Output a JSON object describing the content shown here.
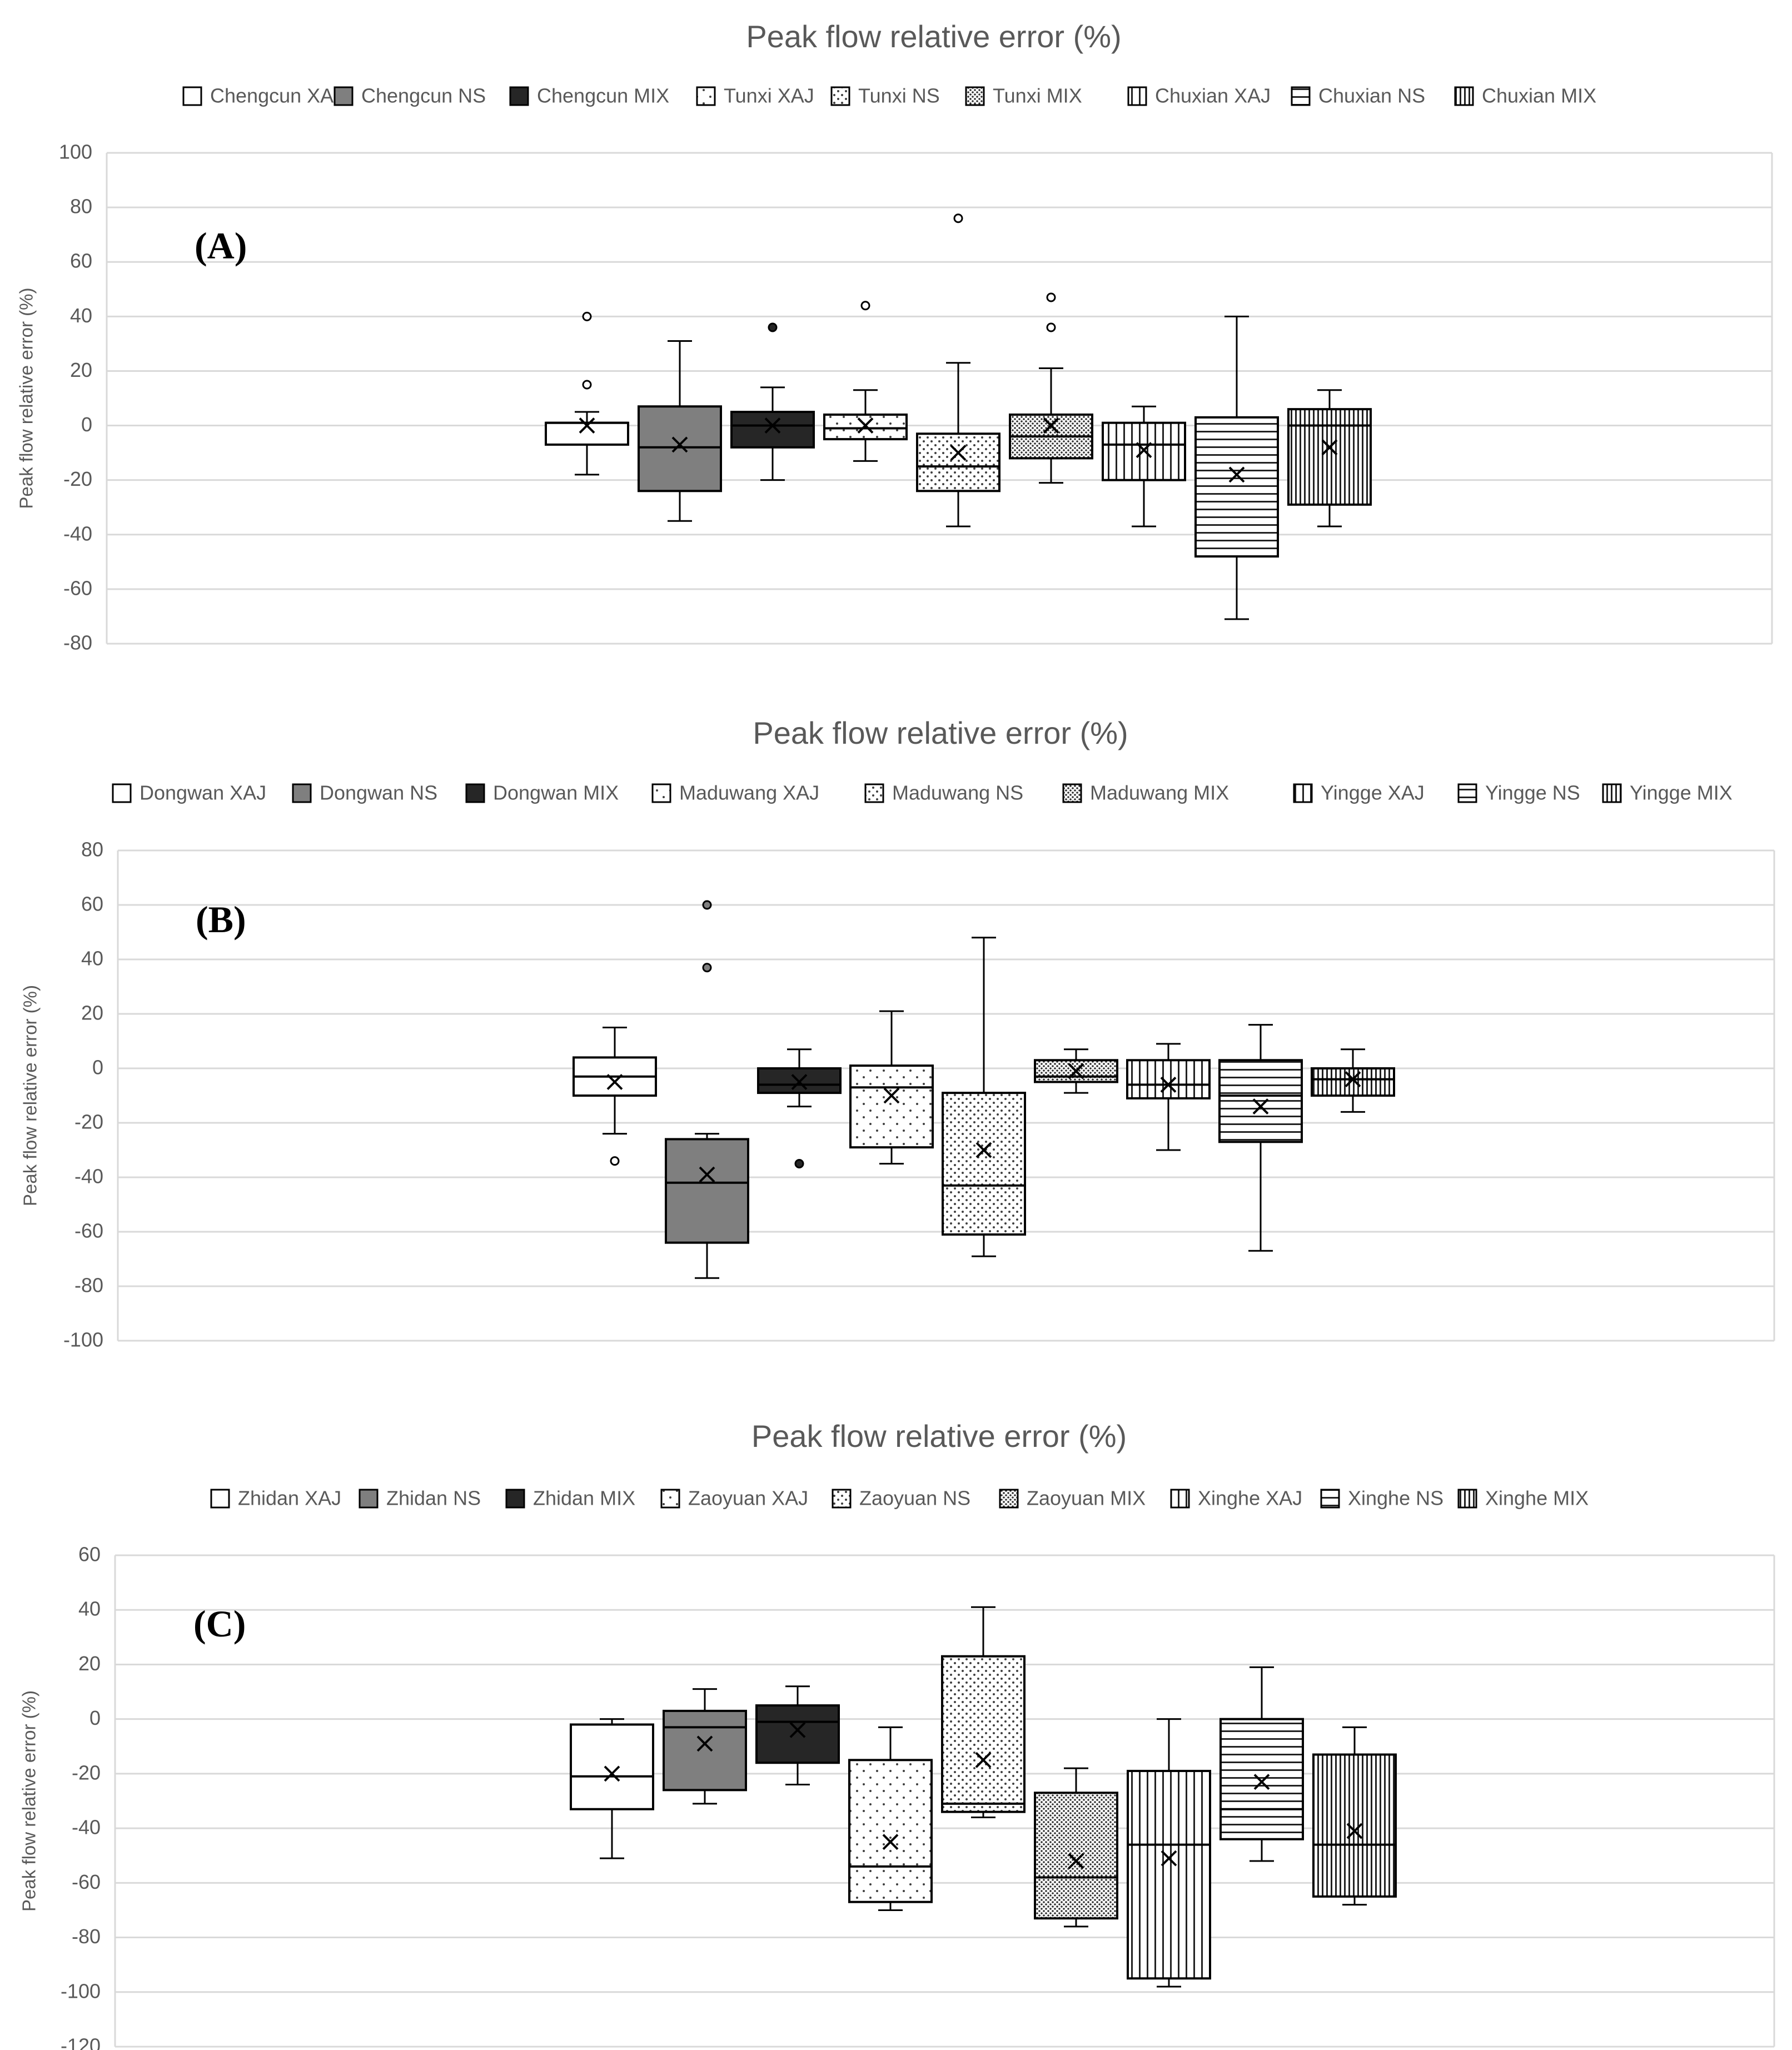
{
  "colors": {
    "white": "#ffffff",
    "gray": "#7f7f7f",
    "dark": "#262626",
    "text": "#595959",
    "grid": "#d9d9d9"
  },
  "chart_data": [
    {
      "type": "box",
      "panel": "(A)",
      "title": "Peak flow relative error (%)",
      "ylabel": "Peak flow relative error (%)",
      "ylim": [
        -80,
        100
      ],
      "yticks": [
        "100",
        "80",
        "60",
        "40",
        "20",
        "0",
        "-20",
        "-40",
        "-60",
        "-80"
      ],
      "series": [
        {
          "name": "Chengcun XAJ",
          "pattern": "white",
          "whisker_low": -18,
          "q1": -7,
          "median": 1,
          "q3": 1,
          "whisker_high": 5,
          "mean": 0,
          "outliers": [
            15,
            40
          ]
        },
        {
          "name": "Chengcun NS",
          "pattern": "gray",
          "whisker_low": -35,
          "q1": -24,
          "median": -8,
          "q3": 7,
          "whisker_high": 31,
          "mean": -7,
          "outliers": []
        },
        {
          "name": "Chengcun MIX",
          "pattern": "dark",
          "whisker_low": -20,
          "q1": -8,
          "median": 0,
          "q3": 5,
          "whisker_high": 14,
          "mean": 0,
          "outliers": [
            36
          ]
        },
        {
          "name": "Tunxi XAJ",
          "pattern": "sparse",
          "whisker_low": -13,
          "q1": -5,
          "median": -1,
          "q3": 4,
          "whisker_high": 13,
          "mean": 0,
          "outliers": [
            44
          ]
        },
        {
          "name": "Tunxi NS",
          "pattern": "dots",
          "whisker_low": -37,
          "q1": -24,
          "median": -15,
          "q3": -3,
          "whisker_high": 23,
          "mean": -10,
          "outliers": [
            76
          ]
        },
        {
          "name": "Tunxi MIX",
          "pattern": "dense",
          "whisker_low": -21,
          "q1": -12,
          "median": -4,
          "q3": 4,
          "whisker_high": 21,
          "mean": 0,
          "outliers": [
            36,
            47
          ]
        },
        {
          "name": "Chuxian XAJ",
          "pattern": "vlines",
          "whisker_low": -37,
          "q1": -20,
          "median": -7,
          "q3": 1,
          "whisker_high": 7,
          "mean": -9,
          "outliers": []
        },
        {
          "name": "Chuxian NS",
          "pattern": "hlines",
          "whisker_low": -71,
          "q1": -48,
          "median": -48,
          "q3": 3,
          "whisker_high": 40,
          "mean": -18,
          "outliers": []
        },
        {
          "name": "Chuxian MIX",
          "pattern": "vdense",
          "whisker_low": -37,
          "q1": -29,
          "median": 0,
          "q3": 6,
          "whisker_high": 13,
          "mean": -8,
          "outliers": []
        }
      ]
    },
    {
      "type": "box",
      "panel": "(B)",
      "title": "Peak flow relative error (%)",
      "ylabel": "Peak flow relative error (%)",
      "ylim": [
        -100,
        80
      ],
      "yticks": [
        "80",
        "60",
        "40",
        "20",
        "0",
        "-20",
        "-40",
        "-60",
        "-80",
        "-100"
      ],
      "series": [
        {
          "name": "Dongwan XAJ",
          "pattern": "white",
          "whisker_low": -24,
          "q1": -10,
          "median": -3,
          "q3": 4,
          "whisker_high": 15,
          "mean": -5,
          "outliers": [
            -34
          ]
        },
        {
          "name": "Dongwan NS",
          "pattern": "gray",
          "whisker_low": -77,
          "q1": -64,
          "median": -42,
          "q3": -26,
          "whisker_high": -24,
          "mean": -39,
          "outliers": [
            37,
            60
          ]
        },
        {
          "name": "Dongwan MIX",
          "pattern": "dark",
          "whisker_low": -14,
          "q1": -9,
          "median": -6,
          "q3": 0,
          "whisker_high": 7,
          "mean": -5,
          "outliers": [
            -35
          ]
        },
        {
          "name": "Maduwang XAJ",
          "pattern": "sparse",
          "whisker_low": -35,
          "q1": -29,
          "median": -7,
          "q3": 1,
          "whisker_high": 21,
          "mean": -10,
          "outliers": []
        },
        {
          "name": "Maduwang NS",
          "pattern": "dots",
          "whisker_low": -69,
          "q1": -61,
          "median": -43,
          "q3": -9,
          "whisker_high": 48,
          "mean": -30,
          "outliers": []
        },
        {
          "name": "Maduwang MIX",
          "pattern": "dense",
          "whisker_low": -9,
          "q1": -5,
          "median": -3,
          "q3": 3,
          "whisker_high": 7,
          "mean": -1,
          "outliers": []
        },
        {
          "name": "Yingge XAJ",
          "pattern": "vlines",
          "whisker_low": -30,
          "q1": -11,
          "median": -6,
          "q3": 3,
          "whisker_high": 9,
          "mean": -6,
          "outliers": []
        },
        {
          "name": "Yingge NS",
          "pattern": "hlines",
          "whisker_low": -67,
          "q1": -27,
          "median": -10,
          "q3": 3,
          "whisker_high": 16,
          "mean": -14,
          "outliers": []
        },
        {
          "name": "Yingge MIX",
          "pattern": "vdense",
          "whisker_low": -16,
          "q1": -10,
          "median": -4,
          "q3": 0,
          "whisker_high": 7,
          "mean": -4,
          "outliers": []
        }
      ]
    },
    {
      "type": "box",
      "panel": "(C)",
      "title": "Peak flow relative error (%)",
      "ylabel": "Peak flow relative error (%)",
      "ylim": [
        -120,
        60
      ],
      "yticks": [
        "60",
        "40",
        "20",
        "0",
        "-20",
        "-40",
        "-60",
        "-80",
        "-100",
        "-120"
      ],
      "series": [
        {
          "name": "Zhidan XAJ",
          "pattern": "white",
          "whisker_low": -51,
          "q1": -33,
          "median": -21,
          "q3": -2,
          "whisker_high": 0,
          "mean": -20,
          "outliers": []
        },
        {
          "name": "Zhidan NS",
          "pattern": "gray",
          "whisker_low": -31,
          "q1": -26,
          "median": -3,
          "q3": 3,
          "whisker_high": 11,
          "mean": -9,
          "outliers": []
        },
        {
          "name": "Zhidan MIX",
          "pattern": "dark",
          "whisker_low": -24,
          "q1": -16,
          "median": -1,
          "q3": 5,
          "whisker_high": 12,
          "mean": -4,
          "outliers": []
        },
        {
          "name": "Zaoyuan XAJ",
          "pattern": "sparse",
          "whisker_low": -70,
          "q1": -67,
          "median": -54,
          "q3": -15,
          "whisker_high": -3,
          "mean": -45,
          "outliers": []
        },
        {
          "name": "Zaoyuan NS",
          "pattern": "dots",
          "whisker_low": -36,
          "q1": -34,
          "median": -31,
          "q3": 23,
          "whisker_high": 41,
          "mean": -15,
          "outliers": []
        },
        {
          "name": "Zaoyuan MIX",
          "pattern": "dense",
          "whisker_low": -76,
          "q1": -73,
          "median": -58,
          "q3": -27,
          "whisker_high": -18,
          "mean": -52,
          "outliers": []
        },
        {
          "name": "Xinghe XAJ",
          "pattern": "vlines",
          "whisker_low": -98,
          "q1": -95,
          "median": -46,
          "q3": -19,
          "whisker_high": 0,
          "mean": -51,
          "outliers": []
        },
        {
          "name": "Xinghe NS",
          "pattern": "hlines",
          "whisker_low": -52,
          "q1": -44,
          "median": -33,
          "q3": 0,
          "whisker_high": 19,
          "mean": -23,
          "outliers": []
        },
        {
          "name": "Xinghe MIX",
          "pattern": "vdense",
          "whisker_low": -68,
          "q1": -65,
          "median": -46,
          "q3": -13,
          "whisker_high": -3,
          "mean": -41,
          "outliers": []
        }
      ]
    }
  ]
}
